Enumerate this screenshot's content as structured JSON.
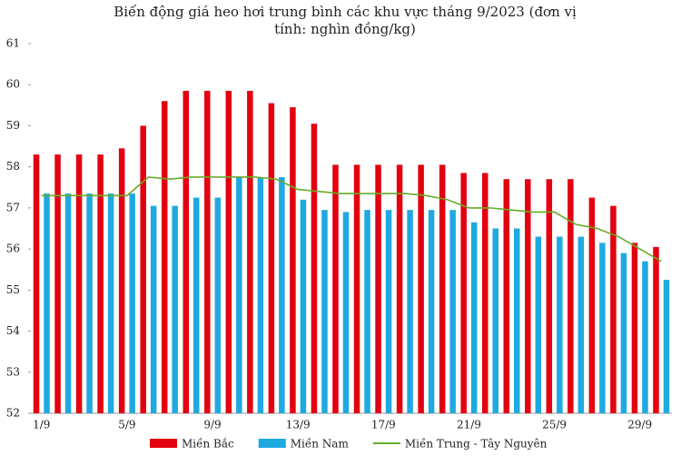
{
  "chart_data": {
    "type": "bar-line",
    "title": "Biến động giá heo hơi trung bình các khu vực tháng 9/2023 (đơn vị",
    "subtitle": "tính: nghìn đồng/kg)",
    "categories": [
      "1/9",
      null,
      null,
      null,
      "5/9",
      null,
      null,
      null,
      "9/9",
      null,
      null,
      null,
      "13/9",
      null,
      null,
      null,
      "17/9",
      null,
      null,
      null,
      "21/9",
      null,
      null,
      null,
      "25/9",
      null,
      null,
      null,
      "29/9",
      null
    ],
    "ylim": [
      52,
      61
    ],
    "yticks": [
      52,
      53,
      54,
      55,
      56,
      57,
      58,
      59,
      60,
      61
    ],
    "series": [
      {
        "name": "Miền Bắc",
        "color": "#e3000f",
        "kind": "bar",
        "values": [
          58.3,
          58.3,
          58.3,
          58.3,
          58.45,
          59.0,
          59.6,
          59.85,
          59.85,
          59.85,
          59.85,
          59.55,
          59.45,
          59.05,
          58.05,
          58.05,
          58.05,
          58.05,
          58.05,
          58.05,
          57.85,
          57.85,
          57.7,
          57.7,
          57.7,
          57.7,
          57.25,
          57.05,
          56.15,
          56.05
        ]
      },
      {
        "name": "Miền Nam",
        "color": "#1fa9e1",
        "kind": "bar",
        "values": [
          57.35,
          57.35,
          57.35,
          57.35,
          57.35,
          57.05,
          57.05,
          57.25,
          57.25,
          57.75,
          57.75,
          57.75,
          57.2,
          56.95,
          56.9,
          56.95,
          56.95,
          56.95,
          56.95,
          56.95,
          56.65,
          56.5,
          56.5,
          56.3,
          56.3,
          56.3,
          56.15,
          55.9,
          55.7,
          55.25
        ]
      },
      {
        "name": "Miền Trung - Tây Nguyên",
        "color": "#6aaa2a",
        "kind": "line",
        "values": [
          57.3,
          57.3,
          57.3,
          57.3,
          57.3,
          57.75,
          57.7,
          57.75,
          57.75,
          57.75,
          57.75,
          57.7,
          57.45,
          57.4,
          57.35,
          57.35,
          57.35,
          57.35,
          57.3,
          57.2,
          57.0,
          57.0,
          56.95,
          56.9,
          56.9,
          56.6,
          56.5,
          56.3,
          56.0,
          55.7
        ]
      }
    ]
  }
}
